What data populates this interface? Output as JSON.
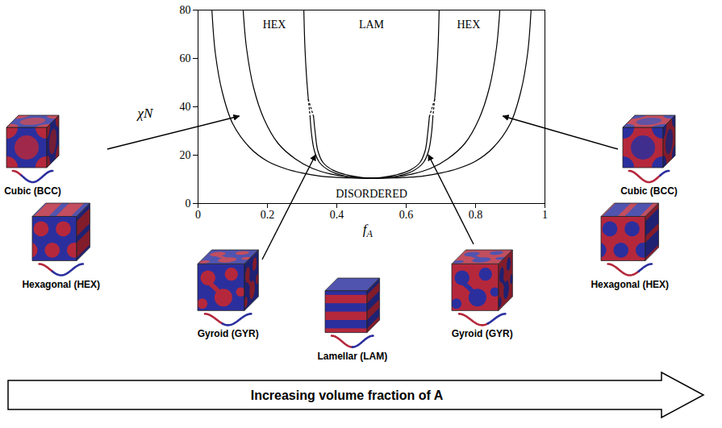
{
  "chart_data": {
    "type": "line",
    "xlabel": "f",
    "xlabel_subscript": "A",
    "ylabel": "χN",
    "xlim": [
      0,
      1
    ],
    "xticks": [
      0,
      0.2,
      0.4,
      0.6,
      0.8,
      1
    ],
    "ylim": [
      0,
      80
    ],
    "yticks": [
      0,
      20,
      40,
      60,
      80
    ],
    "series": [
      {
        "color": "#000000",
        "line_style": "solid",
        "x": [
          0.04,
          0.05,
          0.07,
          0.1,
          0.15,
          0.2,
          0.25,
          0.3,
          0.35,
          0.4,
          0.45,
          0.5,
          0.55,
          0.6,
          0.65,
          0.7,
          0.75,
          0.8,
          0.85,
          0.9,
          0.93,
          0.95,
          0.96
        ],
        "values": [
          80,
          62,
          46,
          33,
          23,
          17.5,
          14.5,
          12.6,
          11.4,
          10.8,
          10.5,
          10.5,
          10.5,
          10.8,
          11.4,
          12.6,
          14.5,
          17.5,
          23,
          33,
          46,
          62,
          80
        ]
      },
      {
        "color": "#000000",
        "line_style": "solid",
        "x": [
          0.13,
          0.14,
          0.16,
          0.19,
          0.23,
          0.28,
          0.33,
          0.38,
          0.43,
          0.47,
          0.5,
          0.53,
          0.57,
          0.62,
          0.67,
          0.72,
          0.77,
          0.81,
          0.84,
          0.86,
          0.87
        ],
        "values": [
          80,
          64,
          48,
          35,
          25,
          18.5,
          14.5,
          12.3,
          11,
          10.6,
          10.5,
          10.6,
          11,
          12.3,
          14.5,
          18.5,
          25,
          35,
          48,
          64,
          80
        ]
      },
      {
        "color": "#000000",
        "line_style": "solid",
        "x": [
          0.305,
          0.308,
          0.313,
          0.318
        ],
        "values": [
          80,
          65,
          52,
          43
        ]
      },
      {
        "color": "#000000",
        "line_style": "solid",
        "x": [
          0.695,
          0.692,
          0.687,
          0.682
        ],
        "values": [
          80,
          65,
          52,
          43
        ]
      },
      {
        "color": "#000000",
        "line_style": "dotted",
        "x": [
          0.318,
          0.323
        ],
        "values": [
          43,
          36
        ]
      },
      {
        "color": "#000000",
        "line_style": "dotted",
        "x": [
          0.318,
          0.333
        ],
        "values": [
          43,
          36
        ]
      },
      {
        "color": "#000000",
        "line_style": "dotted",
        "x": [
          0.682,
          0.677
        ],
        "values": [
          43,
          36
        ]
      },
      {
        "color": "#000000",
        "line_style": "dotted",
        "x": [
          0.682,
          0.667
        ],
        "values": [
          43,
          36
        ]
      },
      {
        "color": "#000000",
        "line_style": "solid",
        "x": [
          0.323,
          0.327,
          0.335,
          0.35,
          0.38,
          0.42,
          0.46,
          0.5,
          0.54,
          0.58,
          0.62,
          0.65,
          0.665,
          0.673,
          0.677
        ],
        "values": [
          36,
          29,
          22,
          17,
          13.5,
          11.5,
          10.7,
          10.5,
          10.7,
          11.5,
          13.5,
          17,
          22,
          29,
          36
        ]
      },
      {
        "color": "#000000",
        "line_style": "solid",
        "x": [
          0.333,
          0.338,
          0.345,
          0.36,
          0.39,
          0.43,
          0.47,
          0.5,
          0.53,
          0.57,
          0.61,
          0.64,
          0.655,
          0.662,
          0.667
        ],
        "values": [
          36,
          29,
          22,
          17,
          13.7,
          11.8,
          10.8,
          10.5,
          10.8,
          11.8,
          13.7,
          17,
          22,
          29,
          36
        ]
      }
    ],
    "annotations": [
      {
        "text": "HEX",
        "x": 0.22,
        "y": 74
      },
      {
        "text": "LAM",
        "x": 0.5,
        "y": 74
      },
      {
        "text": "HEX",
        "x": 0.78,
        "y": 74
      },
      {
        "text": "DISORDERED",
        "x": 0.5,
        "y": 4
      }
    ]
  },
  "structures": [
    "Cubic (BCC)",
    "Hexagonal (HEX)",
    "Gyroid (GYR)",
    "Lamellar (LAM)",
    "Gyroid (GYR)",
    "Hexagonal (HEX)",
    "Cubic (BCC)"
  ],
  "banner": "Increasing volume fraction of A"
}
